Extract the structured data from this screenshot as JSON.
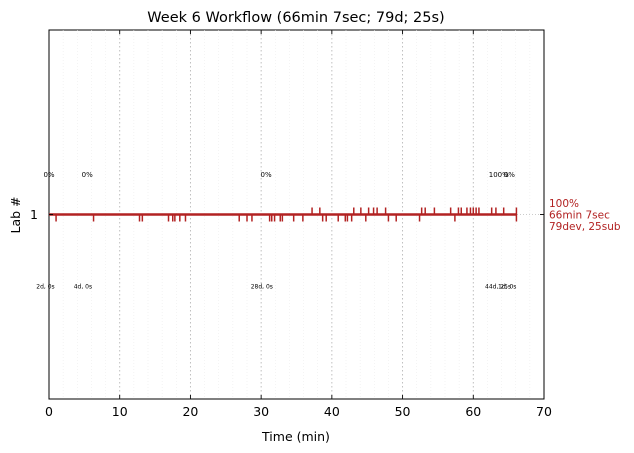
{
  "chart_data": {
    "type": "line",
    "title": "Week 6 Workflow (66min 7sec; 79d; 25s)",
    "xlabel": "Time (min)",
    "ylabel": "Lab #",
    "xlim": [
      0,
      70
    ],
    "xticks": [
      0,
      10,
      20,
      30,
      40,
      50,
      60,
      70
    ],
    "yticks": [
      "1"
    ],
    "grid": "vertical dotted",
    "series_color": "#b22222",
    "end_x": 66.1,
    "events": [
      {
        "x": 1.0,
        "dir": "down"
      },
      {
        "x": 6.3,
        "dir": "down"
      },
      {
        "x": 12.8,
        "dir": "down"
      },
      {
        "x": 13.2,
        "dir": "down"
      },
      {
        "x": 16.9,
        "dir": "down"
      },
      {
        "x": 17.5,
        "dir": "down"
      },
      {
        "x": 17.8,
        "dir": "down"
      },
      {
        "x": 18.5,
        "dir": "down"
      },
      {
        "x": 19.3,
        "dir": "down"
      },
      {
        "x": 26.9,
        "dir": "down"
      },
      {
        "x": 28.0,
        "dir": "down"
      },
      {
        "x": 28.7,
        "dir": "down"
      },
      {
        "x": 31.2,
        "dir": "down"
      },
      {
        "x": 31.5,
        "dir": "down"
      },
      {
        "x": 31.9,
        "dir": "down"
      },
      {
        "x": 32.7,
        "dir": "down"
      },
      {
        "x": 33.0,
        "dir": "down"
      },
      {
        "x": 34.6,
        "dir": "down"
      },
      {
        "x": 35.9,
        "dir": "down"
      },
      {
        "x": 37.2,
        "dir": "up"
      },
      {
        "x": 38.3,
        "dir": "up"
      },
      {
        "x": 38.7,
        "dir": "down"
      },
      {
        "x": 39.2,
        "dir": "down"
      },
      {
        "x": 40.9,
        "dir": "down"
      },
      {
        "x": 41.9,
        "dir": "down"
      },
      {
        "x": 42.2,
        "dir": "down"
      },
      {
        "x": 42.8,
        "dir": "down"
      },
      {
        "x": 43.1,
        "dir": "up"
      },
      {
        "x": 44.1,
        "dir": "up"
      },
      {
        "x": 44.8,
        "dir": "down"
      },
      {
        "x": 45.2,
        "dir": "up"
      },
      {
        "x": 45.9,
        "dir": "up"
      },
      {
        "x": 46.4,
        "dir": "up"
      },
      {
        "x": 47.6,
        "dir": "up"
      },
      {
        "x": 48.0,
        "dir": "down"
      },
      {
        "x": 49.1,
        "dir": "down"
      },
      {
        "x": 52.4,
        "dir": "down"
      },
      {
        "x": 52.7,
        "dir": "up"
      },
      {
        "x": 53.2,
        "dir": "up"
      },
      {
        "x": 54.5,
        "dir": "up"
      },
      {
        "x": 56.8,
        "dir": "up"
      },
      {
        "x": 57.4,
        "dir": "down"
      },
      {
        "x": 57.9,
        "dir": "up"
      },
      {
        "x": 58.3,
        "dir": "up"
      },
      {
        "x": 59.1,
        "dir": "up"
      },
      {
        "x": 59.6,
        "dir": "up"
      },
      {
        "x": 60.0,
        "dir": "up"
      },
      {
        "x": 60.4,
        "dir": "up"
      },
      {
        "x": 60.8,
        "dir": "up"
      },
      {
        "x": 62.6,
        "dir": "up"
      },
      {
        "x": 63.2,
        "dir": "up"
      },
      {
        "x": 64.3,
        "dir": "up"
      },
      {
        "x": 66.1,
        "dir": "up"
      },
      {
        "x": 66.1,
        "dir": "down"
      }
    ],
    "top_annotations": [
      {
        "x": 0.0,
        "text": "0%"
      },
      {
        "x": 5.4,
        "text": "0%"
      },
      {
        "x": 30.7,
        "text": "0%"
      },
      {
        "x": 63.6,
        "text": "100%"
      },
      {
        "x": 65.1,
        "text": "0%"
      }
    ],
    "bottom_annotations": [
      {
        "x": -0.5,
        "text": "2d, 0s"
      },
      {
        "x": 4.8,
        "text": "4d, 0s"
      },
      {
        "x": 30.1,
        "text": "28d, 0s"
      },
      {
        "x": 63.5,
        "text": "44d, 25s"
      },
      {
        "x": 64.8,
        "text": "1d, 0s"
      }
    ],
    "right_annotation": [
      "100%",
      "66min 7sec",
      "79dev, 25sub"
    ]
  }
}
